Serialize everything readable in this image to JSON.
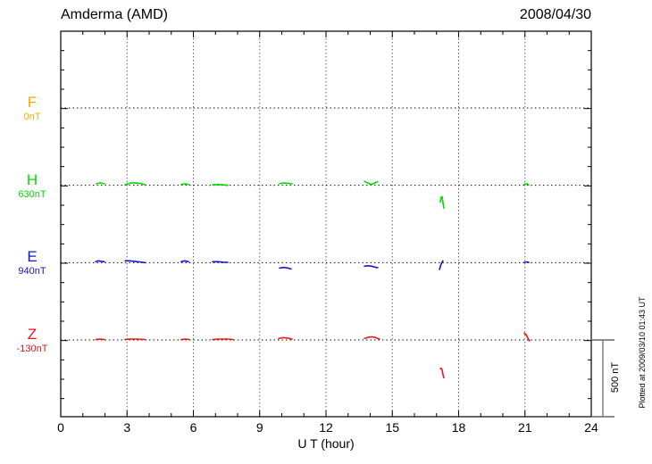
{
  "header": {
    "title": "Amderma (AMD)",
    "date": "2008/04/30"
  },
  "footer": {
    "x_axis_title": "U T (hour)",
    "plotted_at": "Plotted at 2009/03/10 01:43 UT"
  },
  "scale_bar": {
    "label": "500 nT"
  },
  "chart_data": {
    "type": "line",
    "title": "Amderma (AMD)",
    "date": "2008/04/30",
    "xlabel": "U T (hour)",
    "xlim": [
      0,
      24
    ],
    "x_ticks": [
      0,
      3,
      6,
      9,
      12,
      15,
      18,
      21,
      24
    ],
    "x_minor_step_hours": 1,
    "grid": "vertical-dotted-every-3h",
    "scale_bar_label": "500 nT",
    "nT_per_division": 500,
    "plotted_at": "Plotted at 2009/03/10 01:43 UT",
    "series": [
      {
        "name": "F",
        "baseline_label": "0nT",
        "baseline_nT": 0,
        "color": "#FFA500",
        "segments": []
      },
      {
        "name": "H",
        "baseline_label": "630nT",
        "baseline_nT": 630,
        "color": "#00DC00",
        "segments": [
          [
            [
              1.62,
              10
            ],
            [
              1.78,
              16
            ],
            [
              1.98,
              10
            ]
          ],
          [
            [
              2.91,
              3
            ],
            [
              3.05,
              10
            ],
            [
              3.2,
              16
            ],
            [
              3.4,
              16
            ],
            [
              3.6,
              12
            ],
            [
              3.8,
              5
            ]
          ],
          [
            [
              5.45,
              5
            ],
            [
              5.62,
              9
            ],
            [
              5.78,
              5
            ]
          ],
          [
            [
              6.87,
              3
            ],
            [
              7.1,
              5
            ],
            [
              7.35,
              3
            ],
            [
              7.56,
              0
            ]
          ],
          [
            [
              9.9,
              10
            ],
            [
              10.1,
              16
            ],
            [
              10.28,
              13
            ],
            [
              10.46,
              10
            ]
          ],
          [
            [
              13.74,
              26
            ],
            [
              13.94,
              12
            ],
            [
              14.06,
              6
            ],
            [
              14.2,
              15
            ],
            [
              14.34,
              23
            ]
          ],
          [
            [
              17.17,
              -108
            ],
            [
              17.21,
              -78
            ],
            [
              17.25,
              -73
            ],
            [
              17.29,
              -108
            ],
            [
              17.33,
              -148
            ]
          ],
          [
            [
              20.97,
              6
            ],
            [
              21.09,
              9
            ],
            [
              21.17,
              3
            ]
          ]
        ]
      },
      {
        "name": "E",
        "baseline_label": "940nT",
        "baseline_nT": 940,
        "color": "#1414DC",
        "segments": [
          [
            [
              1.58,
              6
            ],
            [
              1.7,
              12
            ],
            [
              1.82,
              9
            ],
            [
              1.98,
              6
            ]
          ],
          [
            [
              2.91,
              12
            ],
            [
              3.11,
              12
            ],
            [
              3.31,
              9
            ],
            [
              3.56,
              5
            ],
            [
              3.8,
              0
            ]
          ],
          [
            [
              5.45,
              6
            ],
            [
              5.6,
              12
            ],
            [
              5.78,
              6
            ]
          ],
          [
            [
              6.87,
              6
            ],
            [
              7.11,
              6
            ],
            [
              7.43,
              2
            ],
            [
              7.56,
              2
            ]
          ],
          [
            [
              9.9,
              -35
            ],
            [
              10.1,
              -31
            ],
            [
              10.28,
              -35
            ],
            [
              10.42,
              -41
            ]
          ],
          [
            [
              13.74,
              -23
            ],
            [
              13.9,
              -20
            ],
            [
              14.06,
              -23
            ],
            [
              14.22,
              -29
            ],
            [
              14.34,
              -32
            ]
          ],
          [
            [
              17.13,
              -44
            ],
            [
              17.21,
              -9
            ],
            [
              17.29,
              12
            ]
          ],
          [
            [
              20.97,
              2
            ],
            [
              21.09,
              5
            ],
            [
              21.17,
              2
            ]
          ]
        ]
      },
      {
        "name": "Z",
        "baseline_label": "-130nT",
        "baseline_nT": -130,
        "color": "#EE1414",
        "segments": [
          [
            [
              1.58,
              3
            ],
            [
              1.78,
              6
            ],
            [
              1.98,
              3
            ]
          ],
          [
            [
              2.91,
              3
            ],
            [
              3.15,
              6
            ],
            [
              3.43,
              6
            ],
            [
              3.8,
              3
            ]
          ],
          [
            [
              5.45,
              3
            ],
            [
              5.64,
              6
            ],
            [
              5.82,
              3
            ]
          ],
          [
            [
              6.87,
              3
            ],
            [
              7.15,
              6
            ],
            [
              7.56,
              6
            ],
            [
              7.8,
              3
            ]
          ],
          [
            [
              9.86,
              9
            ],
            [
              10.06,
              15
            ],
            [
              10.28,
              12
            ],
            [
              10.46,
              6
            ]
          ],
          [
            [
              13.74,
              9
            ],
            [
              13.9,
              17
            ],
            [
              14.06,
              20
            ],
            [
              14.22,
              17
            ],
            [
              14.42,
              6
            ]
          ],
          [
            [
              17.17,
              -186
            ],
            [
              17.21,
              -183
            ],
            [
              17.25,
              -192
            ],
            [
              17.29,
              -221
            ],
            [
              17.33,
              -244
            ]
          ],
          [
            [
              20.97,
              44
            ],
            [
              21.05,
              35
            ],
            [
              21.13,
              12
            ],
            [
              21.21,
              -6
            ]
          ]
        ]
      }
    ]
  }
}
